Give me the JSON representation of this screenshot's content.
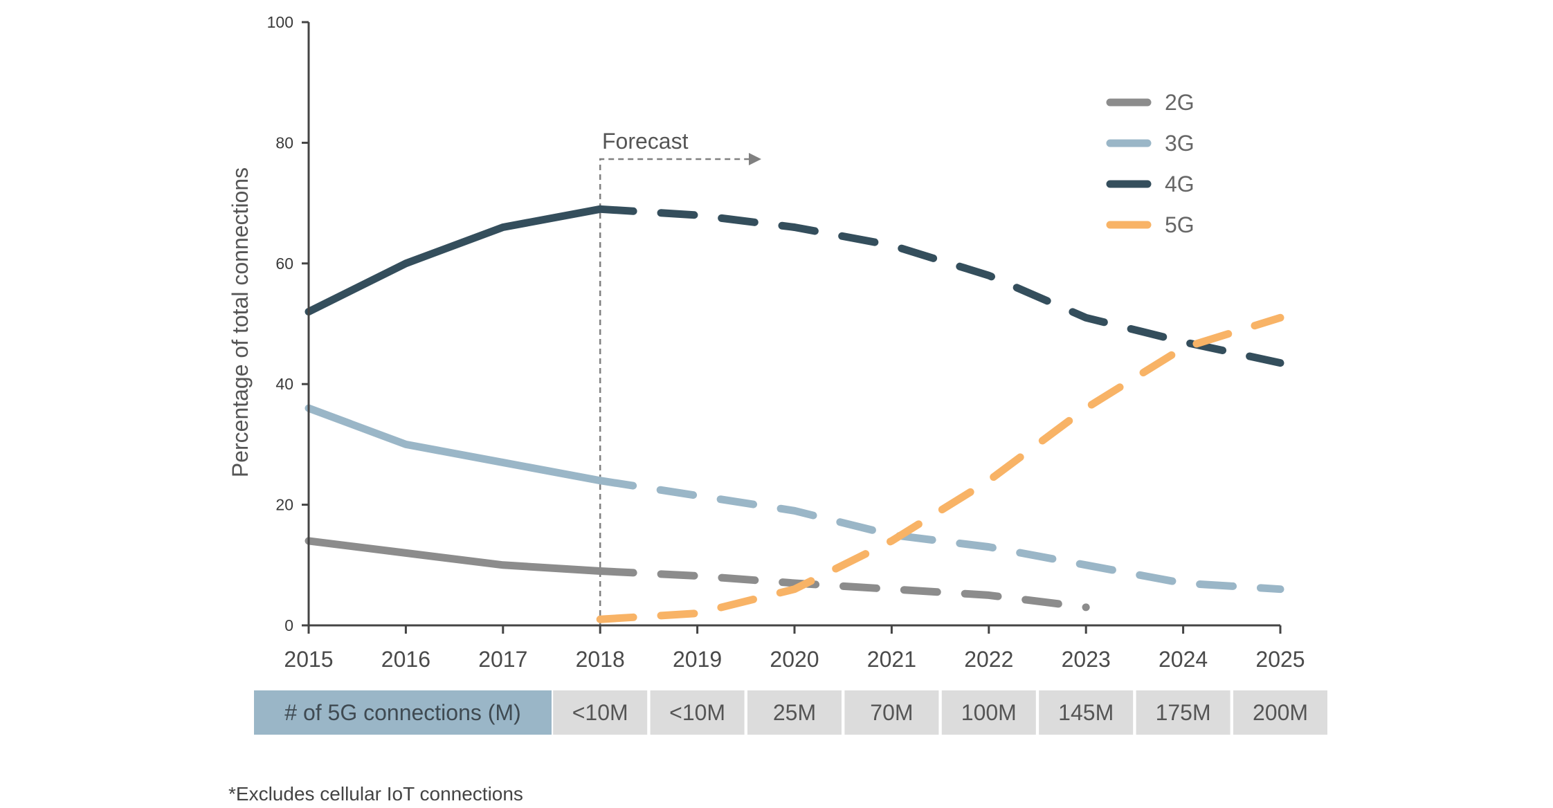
{
  "chart_data": {
    "type": "line",
    "ylabel": "Percentage of total connections",
    "xlabel": "",
    "ylim": [
      0,
      100
    ],
    "yticks": [
      0,
      20,
      40,
      60,
      80,
      100
    ],
    "x": [
      "2015",
      "2016",
      "2017",
      "2018",
      "2019",
      "2020",
      "2021",
      "2022",
      "2023",
      "2024",
      "2025"
    ],
    "forecast_start": 2018,
    "forecast_label": "Forecast",
    "legend_position": "top-right",
    "series": [
      {
        "name": "2G",
        "color": "#8c8c8c",
        "x": [
          2015,
          2016,
          2017,
          2018,
          2019,
          2020,
          2021,
          2022,
          2023
        ],
        "values": [
          14,
          12,
          10,
          9,
          8.2,
          7,
          6,
          5,
          3
        ]
      },
      {
        "name": "3G",
        "color": "#9ab6c7",
        "x": [
          2015,
          2016,
          2017,
          2018,
          2019,
          2020,
          2021,
          2022,
          2023,
          2024,
          2025
        ],
        "values": [
          36,
          30,
          27,
          24,
          21.5,
          19,
          15,
          13,
          10,
          7,
          6
        ]
      },
      {
        "name": "4G",
        "color": "#344e5c",
        "x": [
          2015,
          2016,
          2017,
          2018,
          2019,
          2020,
          2021,
          2022,
          2023,
          2024,
          2025
        ],
        "values": [
          52,
          60,
          66,
          69,
          68,
          66,
          63,
          58,
          51,
          47,
          43.5
        ]
      },
      {
        "name": "5G",
        "color": "#f8b366",
        "x": [
          2018,
          2019,
          2020,
          2021,
          2022,
          2023,
          2024,
          2025
        ],
        "values": [
          1,
          2,
          6,
          14,
          24,
          36,
          46,
          51
        ]
      }
    ],
    "table": {
      "header": "# of 5G connections (M)",
      "values": [
        "<10M",
        "<10M",
        "25M",
        "70M",
        "100M",
        "145M",
        "175M",
        "200M"
      ]
    },
    "footnote": "*Excludes cellular IoT connections"
  },
  "colors": {
    "axis": "#444444",
    "forecast_marker": "#808080",
    "table_header_bg": "#9ab6c7",
    "table_cell_bg": "#dcdcdc"
  }
}
